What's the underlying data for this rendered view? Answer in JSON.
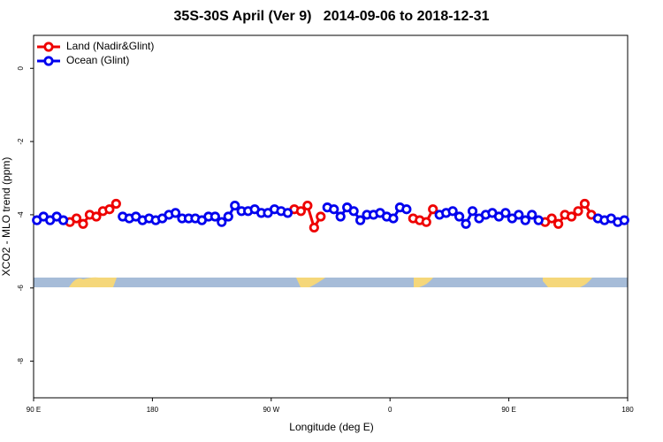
{
  "chart_data": {
    "type": "line",
    "title": "35S-30S April (Ver 9)   2014-09-06 to 2018-12-31",
    "xlabel": "Longitude (deg E)",
    "ylabel": "XCO2 - MLO trend (ppm)",
    "xlim": [
      90,
      540
    ],
    "xticks": [
      {
        "value": 90,
        "label": "90 E"
      },
      {
        "value": 180,
        "label": "180"
      },
      {
        "value": 270,
        "label": "90 W"
      },
      {
        "value": 360,
        "label": "0"
      },
      {
        "value": 450,
        "label": "90 E"
      },
      {
        "value": 540,
        "label": "180"
      }
    ],
    "ylim": [
      -9,
      0.9
    ],
    "yticks": [
      0,
      -2,
      -4,
      -6,
      -8
    ],
    "legend": "top-left",
    "x": [
      92.5,
      97.5,
      102.5,
      107.5,
      112.5,
      117.5,
      122.5,
      127.5,
      132.5,
      137.5,
      142.5,
      147.5,
      152.5,
      157.5,
      162.5,
      167.5,
      172.5,
      177.5,
      182.5,
      187.5,
      192.5,
      197.5,
      202.5,
      207.5,
      212.5,
      217.5,
      222.5,
      227.5,
      232.5,
      237.5,
      242.5,
      247.5,
      252.5,
      257.5,
      262.5,
      267.5,
      272.5,
      277.5,
      282.5,
      287.5,
      292.5,
      297.5,
      302.5,
      307.5,
      312.5,
      317.5,
      322.5,
      327.5,
      332.5,
      337.5,
      342.5,
      347.5,
      352.5,
      357.5,
      362.5,
      367.5,
      372.5,
      377.5,
      382.5,
      387.5,
      392.5,
      397.5,
      402.5,
      407.5,
      412.5,
      417.5,
      422.5,
      427.5,
      432.5,
      437.5,
      442.5,
      447.5,
      452.5,
      457.5,
      462.5,
      467.5,
      472.5,
      477.5,
      482.5,
      487.5,
      492.5,
      497.5,
      502.5,
      507.5,
      512.5,
      517.5,
      522.5,
      527.5,
      532.5,
      537.5
    ],
    "series": [
      {
        "name": "Land (Nadir&Glint)",
        "color": "#ee0000",
        "values": [
          null,
          null,
          null,
          null,
          null,
          -4.2,
          -4.1,
          -4.25,
          -4.0,
          -4.05,
          -3.9,
          -3.85,
          -3.7,
          null,
          null,
          null,
          null,
          null,
          null,
          null,
          null,
          null,
          null,
          null,
          null,
          null,
          null,
          null,
          null,
          null,
          null,
          null,
          null,
          null,
          null,
          null,
          null,
          null,
          null,
          -3.85,
          -3.9,
          -3.75,
          -4.35,
          -4.05,
          null,
          null,
          null,
          null,
          null,
          null,
          null,
          null,
          null,
          null,
          null,
          null,
          null,
          -4.1,
          -4.15,
          -4.2,
          -3.85,
          null,
          null,
          null,
          null,
          null,
          null,
          null,
          null,
          null,
          null,
          null,
          null,
          null,
          null,
          null,
          null,
          -4.2,
          -4.1,
          -4.25,
          -4.0,
          -4.05,
          -3.9,
          -3.7,
          -4.0,
          null,
          null,
          null,
          null,
          null
        ]
      },
      {
        "name": "Ocean (Glint)",
        "color": "#0000ee",
        "values": [
          -4.15,
          -4.05,
          -4.15,
          -4.05,
          -4.15,
          null,
          null,
          null,
          null,
          null,
          null,
          null,
          null,
          -4.05,
          -4.1,
          -4.05,
          -4.15,
          -4.1,
          -4.15,
          -4.1,
          -4.0,
          -3.95,
          -4.1,
          -4.1,
          -4.1,
          -4.15,
          -4.05,
          -4.05,
          -4.2,
          -4.05,
          -3.75,
          -3.9,
          -3.9,
          -3.85,
          -3.95,
          -3.95,
          -3.85,
          -3.9,
          -3.95,
          null,
          null,
          null,
          null,
          null,
          -3.8,
          -3.85,
          -4.05,
          -3.8,
          -3.9,
          -4.15,
          -4.0,
          -4.0,
          -3.95,
          -4.05,
          -4.1,
          -3.8,
          -3.85,
          null,
          null,
          null,
          null,
          -4.0,
          -3.95,
          -3.9,
          -4.05,
          -4.25,
          -3.9,
          -4.1,
          -4.0,
          -3.95,
          -4.05,
          -3.95,
          -4.1,
          -4.0,
          -4.15,
          -4.0,
          -4.15,
          null,
          null,
          null,
          null,
          null,
          null,
          null,
          null,
          -4.1,
          -4.15,
          -4.1,
          -4.2,
          -4.15
        ]
      }
    ]
  }
}
